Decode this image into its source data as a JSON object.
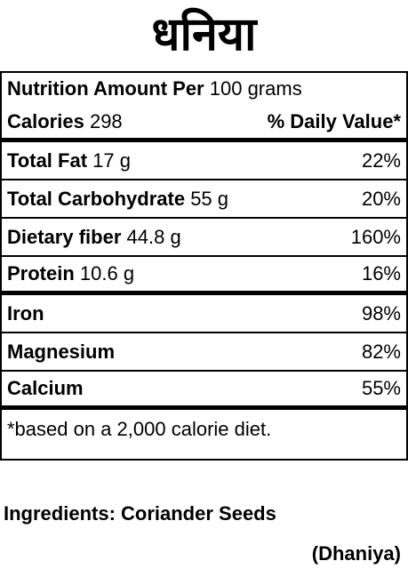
{
  "title": "धनिया",
  "label": {
    "header": {
      "label": "Nutrition Amount Per",
      "amount": "100 grams"
    },
    "calories": {
      "label": "Calories",
      "amount": "298",
      "daily_value": "% Daily Value*"
    },
    "nutrients": [
      {
        "name": "Total Fat",
        "amount": "17 g",
        "percent": "22%"
      },
      {
        "name": "Total Carbohydrate",
        "amount": "55 g",
        "percent": "20%"
      },
      {
        "name": "Dietary fiber",
        "amount": "44.8 g",
        "percent": "160%"
      },
      {
        "name": "Protein",
        "amount": "10.6 g",
        "percent": "16%"
      }
    ],
    "minerals": [
      {
        "name": "Iron",
        "percent": "98%"
      },
      {
        "name": "Magnesium",
        "percent": "82%"
      },
      {
        "name": "Calcium",
        "percent": "55%"
      }
    ],
    "footnote": "*based on a 2,000 calorie diet."
  },
  "ingredients": {
    "label": "Ingredients: Coriander Seeds",
    "note": "(Dhaniya)"
  }
}
